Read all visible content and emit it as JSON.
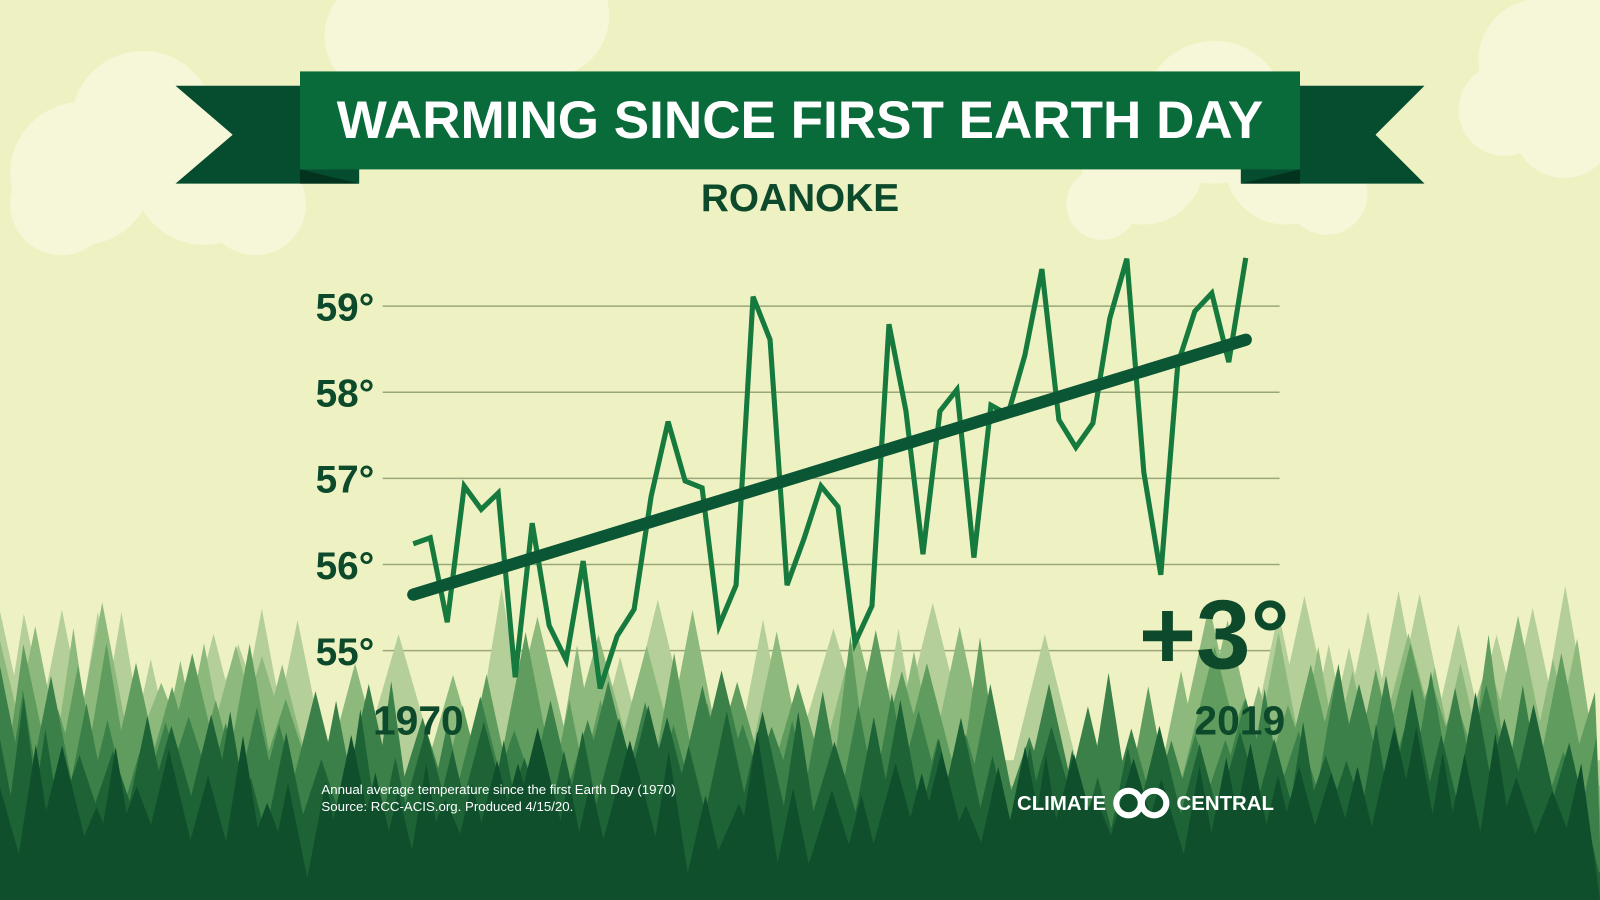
{
  "header": {
    "title": "WARMING SINCE FIRST EARTH DAY",
    "subtitle": "ROANOKE"
  },
  "colors": {
    "background": "#eef2c2",
    "banner": "#0a6b3a",
    "banner_dark": "#064c2f",
    "series_line": "#167a3e",
    "trend_line": "#0b5634",
    "text_dark": "#0d4a2c"
  },
  "chart_data": {
    "type": "line",
    "title": "WARMING SINCE FIRST EARTH DAY",
    "subtitle": "ROANOKE",
    "xlabel": "",
    "ylabel": "",
    "x_tick_labels": [
      "1970",
      "2019"
    ],
    "y_tick_labels": [
      "59°",
      "58°",
      "57°",
      "56°",
      "55°"
    ],
    "y_ticks": [
      59,
      58,
      57,
      56,
      55
    ],
    "xlim": [
      1970,
      2019
    ],
    "ylim": [
      54.5,
      59.6
    ],
    "grid": "horizontal",
    "x": [
      1970,
      1971,
      1972,
      1973,
      1974,
      1975,
      1976,
      1977,
      1978,
      1979,
      1980,
      1981,
      1982,
      1983,
      1984,
      1985,
      1986,
      1987,
      1988,
      1989,
      1990,
      1991,
      1992,
      1993,
      1994,
      1995,
      1996,
      1997,
      1998,
      1999,
      2000,
      2001,
      2002,
      2003,
      2004,
      2005,
      2006,
      2007,
      2008,
      2009,
      2010,
      2011,
      2012,
      2013,
      2014,
      2015,
      2016,
      2017,
      2018,
      2019
    ],
    "series": [
      {
        "values": [
          56.24,
          56.31,
          55.33,
          56.91,
          56.64,
          56.83,
          54.69,
          56.48,
          55.29,
          54.89,
          56.04,
          54.56,
          55.17,
          55.48,
          56.79,
          57.66,
          56.97,
          56.89,
          55.29,
          55.76,
          59.11,
          58.61,
          55.76,
          56.3,
          56.91,
          56.67,
          55.09,
          55.52,
          58.79,
          57.78,
          56.12,
          57.78,
          58.03,
          56.08,
          57.85,
          57.74,
          58.43,
          59.43,
          57.68,
          57.36,
          57.64,
          58.86,
          59.55,
          57.07,
          55.88,
          58.33,
          58.94,
          59.15,
          58.35,
          59.56
        ]
      }
    ],
    "trend": {
      "start": [
        1970,
        55.65
      ],
      "end": [
        2019,
        58.61
      ]
    },
    "annotation": "+3°"
  },
  "footer": {
    "note_line1": "Annual average temperature since the first Earth Day (1970)",
    "note_line2": "Source: RCC-ACIS.org. Produced 4/15/20.",
    "logo_left": "CLIMATE",
    "logo_right": "CENTRAL"
  }
}
